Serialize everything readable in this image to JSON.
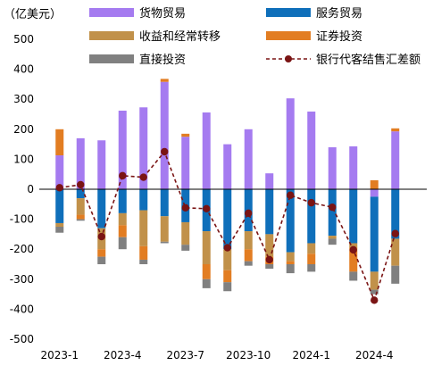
{
  "chart_data": {
    "type": "bar",
    "stacked": true,
    "unit_label": "（亿美元）",
    "categories": [
      "2023-1",
      "2023-2",
      "2023-3",
      "2023-4",
      "2023-5",
      "2023-6",
      "2023-7",
      "2023-8",
      "2023-9",
      "2023-10",
      "2023-11",
      "2023-12",
      "2024-1",
      "2024-2",
      "2024-3",
      "2024-4",
      "2024-5",
      "2024-6"
    ],
    "x_tick_labels": [
      {
        "index": 0,
        "label": "2023-1"
      },
      {
        "index": 3,
        "label": "2023-4"
      },
      {
        "index": 6,
        "label": "2023-7"
      },
      {
        "index": 9,
        "label": "2023-10"
      },
      {
        "index": 12,
        "label": "2024-1"
      },
      {
        "index": 15,
        "label": "2024-4"
      }
    ],
    "ylim": [
      -500,
      500
    ],
    "y_ticks": [
      -500,
      -400,
      -300,
      -200,
      -100,
      0,
      100,
      200,
      300,
      400,
      500
    ],
    "grid": false,
    "legend": {
      "position": "top",
      "columns": 2
    },
    "series": [
      {
        "name": "货物贸易",
        "color": "#a57bf0",
        "values": [
          113,
          170,
          163,
          262,
          273,
          358,
          175,
          256,
          150,
          200,
          53,
          303,
          259,
          140,
          143,
          -25,
          193,
          null
        ]
      },
      {
        "name": "服务贸易",
        "color": "#0f6fba",
        "values": [
          -113,
          -30,
          -130,
          -80,
          -70,
          -90,
          -110,
          -140,
          -200,
          -140,
          -150,
          -210,
          -180,
          -155,
          -180,
          -250,
          -165,
          null
        ]
      },
      {
        "name": "收益和经常转移",
        "color": "#c1914a",
        "values": [
          -12,
          -55,
          -70,
          -40,
          -120,
          -85,
          -75,
          -110,
          -70,
          -60,
          -75,
          -30,
          -35,
          -10,
          -15,
          -60,
          -90,
          null
        ]
      },
      {
        "name": "证券投资",
        "color": "#e27d22",
        "values": [
          87,
          -15,
          -25,
          -40,
          -45,
          10,
          10,
          -50,
          -40,
          -40,
          -25,
          -10,
          -35,
          0,
          -80,
          30,
          10,
          null
        ]
      },
      {
        "name": "直接投资",
        "color": "#808080",
        "values": [
          -20,
          -5,
          -25,
          -40,
          -15,
          -5,
          -20,
          -30,
          -30,
          -15,
          -15,
          -30,
          -25,
          -20,
          -30,
          -15,
          -60,
          null
        ]
      },
      {
        "name": "银行代客结售汇差额",
        "type": "line",
        "color": "#7a1414",
        "dashed": true,
        "values": [
          5,
          15,
          -158,
          45,
          40,
          125,
          -62,
          -65,
          -195,
          -80,
          -235,
          -20,
          -45,
          -60,
          -202,
          -370,
          -148,
          null
        ]
      }
    ]
  }
}
